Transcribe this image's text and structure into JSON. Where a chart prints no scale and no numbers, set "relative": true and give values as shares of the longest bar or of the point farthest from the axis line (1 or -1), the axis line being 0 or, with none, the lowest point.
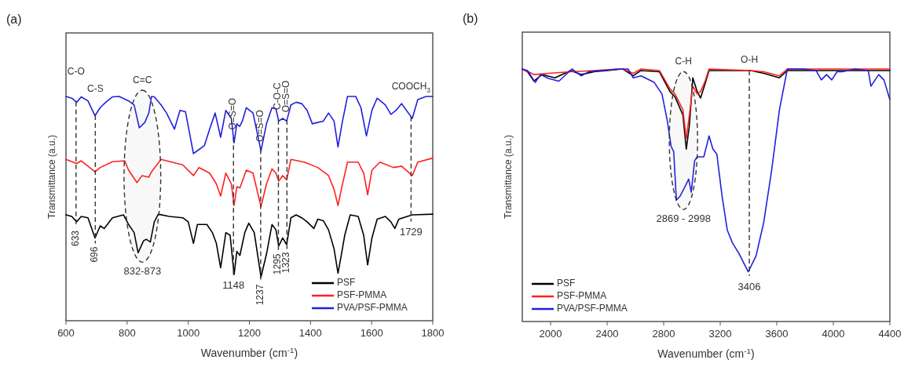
{
  "chart_data": [
    {
      "type": "line",
      "title": "(a)",
      "xlabel": "Wavenumber (cm$^{-1}$)",
      "ylabel": "Transmittance (a.u.)",
      "relative": true,
      "xlim": [
        600,
        1800
      ],
      "xticks": [
        600,
        800,
        1000,
        1200,
        1400,
        1600,
        1800
      ],
      "legend": "bottom right",
      "series": [
        {
          "name": "PSF",
          "color": "#000000",
          "x": [
            600,
            619,
            635,
            650,
            672,
            695,
            712,
            725,
            752,
            788,
            805,
            823,
            836,
            854,
            863,
            876,
            889,
            902,
            938,
            982,
            1000,
            1017,
            1030,
            1061,
            1079,
            1092,
            1106,
            1123,
            1137,
            1150,
            1159,
            1169,
            1185,
            1198,
            1216,
            1238,
            1256,
            1274,
            1287,
            1296,
            1309,
            1322,
            1336,
            1353,
            1371,
            1389,
            1411,
            1424,
            1442,
            1459,
            1477,
            1490,
            1499,
            1512,
            1530,
            1556,
            1574,
            1587,
            1601,
            1618,
            1645,
            1663,
            1676,
            1689,
            1733,
            1800
          ],
          "values": [
            0.472,
            0.465,
            0.441,
            0.465,
            0.459,
            0.369,
            0.423,
            0.411,
            0.459,
            0.472,
            0.429,
            0.393,
            0.303,
            0.357,
            0.363,
            0.351,
            0.441,
            0.475,
            0.465,
            0.459,
            0.441,
            0.345,
            0.429,
            0.429,
            0.393,
            0.345,
            0.236,
            0.393,
            0.381,
            0.206,
            0.309,
            0.291,
            0.393,
            0.435,
            0.393,
            0.195,
            0.297,
            0.429,
            0.405,
            0.333,
            0.369,
            0.339,
            0.459,
            0.472,
            0.459,
            0.441,
            0.411,
            0.453,
            0.446,
            0.405,
            0.321,
            0.212,
            0.279,
            0.381,
            0.472,
            0.465,
            0.381,
            0.249,
            0.369,
            0.453,
            0.465,
            0.441,
            0.411,
            0.453,
            0.472,
            0.475
          ]
        },
        {
          "name": "PSF-PMMA",
          "color": "#ff2020",
          "x": [
            600,
            635,
            650,
            695,
            712,
            752,
            792,
            805,
            832,
            849,
            871,
            880,
            911,
            982,
            1017,
            1035,
            1070,
            1092,
            1106,
            1123,
            1141,
            1150,
            1159,
            1169,
            1190,
            1212,
            1238,
            1256,
            1274,
            1287,
            1296,
            1309,
            1322,
            1336,
            1380,
            1424,
            1459,
            1477,
            1490,
            1503,
            1521,
            1556,
            1574,
            1587,
            1601,
            1627,
            1671,
            1698,
            1733,
            1751,
            1800
          ],
          "values": [
            0.719,
            0.701,
            0.713,
            0.664,
            0.683,
            0.709,
            0.713,
            0.671,
            0.616,
            0.647,
            0.64,
            0.664,
            0.719,
            0.695,
            0.647,
            0.683,
            0.658,
            0.61,
            0.556,
            0.658,
            0.61,
            0.514,
            0.598,
            0.592,
            0.671,
            0.658,
            0.508,
            0.61,
            0.677,
            0.658,
            0.622,
            0.647,
            0.628,
            0.719,
            0.707,
            0.683,
            0.647,
            0.586,
            0.514,
            0.598,
            0.707,
            0.707,
            0.658,
            0.562,
            0.671,
            0.707,
            0.683,
            0.689,
            0.647,
            0.707,
            0.725
          ]
        },
        {
          "name": "PVA/PSF-PMMA",
          "color": "#2020e0",
          "x": [
            600,
            619,
            635,
            650,
            672,
            695,
            712,
            730,
            752,
            774,
            805,
            823,
            840,
            858,
            871,
            880,
            889,
            911,
            929,
            955,
            973,
            991,
            1017,
            1035,
            1053,
            1070,
            1088,
            1106,
            1123,
            1141,
            1150,
            1159,
            1168,
            1177,
            1190,
            1212,
            1238,
            1256,
            1274,
            1287,
            1296,
            1309,
            1322,
            1336,
            1353,
            1371,
            1389,
            1406,
            1424,
            1442,
            1459,
            1477,
            1490,
            1503,
            1521,
            1548,
            1565,
            1583,
            1601,
            1618,
            1645,
            1663,
            1680,
            1698,
            1733,
            1751,
            1778,
            1800
          ],
          "values": [
            1.0,
            0.992,
            0.974,
            0.998,
            0.98,
            0.914,
            0.95,
            0.974,
            0.998,
            1.0,
            0.98,
            0.962,
            0.86,
            0.884,
            0.926,
            1.0,
            0.998,
            0.962,
            0.926,
            0.854,
            0.938,
            0.932,
            0.745,
            0.763,
            0.781,
            0.854,
            0.926,
            0.818,
            0.938,
            0.902,
            0.793,
            0.878,
            0.866,
            0.89,
            0.95,
            0.926,
            0.757,
            0.878,
            0.95,
            0.944,
            0.89,
            0.902,
            0.89,
            0.962,
            0.974,
            0.968,
            0.938,
            0.878,
            0.884,
            0.89,
            0.926,
            0.89,
            0.775,
            0.878,
            1.0,
            1.0,
            0.95,
            0.824,
            0.938,
            0.992,
            0.962,
            0.92,
            0.938,
            0.968,
            0.902,
            0.986,
            1.0,
            1.0
          ]
        }
      ],
      "ref_lines": [
        {
          "axis": "x",
          "value": 633,
          "label": "633"
        },
        {
          "axis": "x",
          "value": 696,
          "label": "696"
        },
        {
          "axis": "x",
          "value": 1148,
          "label": "1148"
        },
        {
          "axis": "x",
          "value": 1237,
          "label": "1237"
        },
        {
          "axis": "x",
          "value": 1295,
          "label": "1295"
        },
        {
          "axis": "x",
          "value": 1323,
          "label": "1323"
        },
        {
          "axis": "x",
          "value": 1729,
          "label": "1729"
        }
      ],
      "bands": [
        {
          "axis": "x",
          "from": 790,
          "to": 910,
          "label": "832-873"
        }
      ],
      "annotations": [
        "C-O",
        "C-S",
        "C=C",
        "O=S=O",
        "O=S=O",
        "C-O-C",
        "O=S=O",
        "COOCH$_{3}$"
      ]
    },
    {
      "type": "line",
      "title": "(b)",
      "xlabel": "Wavenumber (cm$^{-1}$)",
      "ylabel": "Transmittance (a.u.)",
      "relative": true,
      "xlim": [
        1800,
        4400
      ],
      "xticks": [
        2000,
        2400,
        2800,
        3200,
        3600,
        4000,
        4400
      ],
      "legend": "bottom left",
      "series": [
        {
          "name": "PSF",
          "color": "#000000",
          "x": [
            1800,
            1837,
            1883,
            1939,
            2031,
            2142,
            2216,
            2308,
            2400,
            2511,
            2585,
            2640,
            2770,
            2844,
            2880,
            2936,
            2960,
            2982,
            3006,
            3037,
            3061,
            3093,
            3121,
            3416,
            3508,
            3619,
            3675,
            4400
          ],
          "values": [
            1.0,
            0.989,
            0.952,
            0.978,
            0.965,
            0.994,
            0.978,
            0.989,
            0.994,
            1.0,
            0.973,
            0.994,
            0.989,
            0.911,
            0.89,
            0.818,
            0.683,
            0.776,
            0.965,
            0.911,
            0.885,
            0.942,
            0.994,
            0.994,
            0.983,
            0.965,
            0.994,
            0.994
          ]
        },
        {
          "name": "PSF-PMMA",
          "color": "#ff2020",
          "x": [
            1800,
            1883,
            1985,
            2142,
            2308,
            2511,
            2585,
            2640,
            2770,
            2844,
            2880,
            2936,
            2960,
            2982,
            3006,
            3037,
            3061,
            3093,
            3121,
            3416,
            3508,
            3619,
            3675,
            4400
          ],
          "values": [
            1.0,
            0.978,
            0.983,
            0.989,
            0.994,
            1.0,
            0.983,
            1.0,
            0.994,
            0.922,
            0.901,
            0.839,
            0.725,
            0.818,
            0.932,
            0.901,
            0.911,
            0.952,
            1.0,
            0.994,
            0.989,
            0.973,
            1.0,
            1.0
          ]
        },
        {
          "name": "PVA/PSF-PMMA",
          "color": "#2020e0",
          "x": [
            1800,
            1837,
            1892,
            1929,
            1985,
            2059,
            2151,
            2216,
            2271,
            2363,
            2474,
            2548,
            2585,
            2640,
            2733,
            2788,
            2825,
            2853,
            2871,
            2890,
            2917,
            2954,
            2977,
            2995,
            3019,
            3037,
            3084,
            3121,
            3148,
            3176,
            3213,
            3250,
            3287,
            3333,
            3398,
            3453,
            3508,
            3564,
            3619,
            3675,
            3786,
            3878,
            3915,
            3952,
            3989,
            4026,
            4063,
            4155,
            4247,
            4266,
            4321,
            4358,
            4400
          ],
          "values": [
            1.0,
            0.994,
            0.947,
            0.978,
            0.963,
            0.952,
            1.0,
            0.973,
            0.989,
            0.994,
            1.0,
            1.0,
            0.965,
            0.973,
            0.947,
            0.901,
            0.797,
            0.693,
            0.673,
            0.481,
            0.497,
            0.538,
            0.564,
            0.512,
            0.637,
            0.652,
            0.652,
            0.735,
            0.683,
            0.663,
            0.497,
            0.362,
            0.311,
            0.269,
            0.197,
            0.259,
            0.393,
            0.6,
            0.839,
            1.0,
            1.0,
            0.994,
            0.957,
            0.978,
            0.957,
            0.989,
            0.989,
            1.0,
            0.994,
            0.932,
            0.978,
            0.957,
            0.879
          ]
        }
      ],
      "ref_lines": [
        {
          "axis": "x",
          "value": 3406,
          "label": "3406"
        }
      ],
      "bands": [
        {
          "axis": "x",
          "from": 2840,
          "to": 3040,
          "label": "2869 - 2998"
        }
      ],
      "annotations": [
        "C-H",
        "O-H"
      ]
    }
  ]
}
